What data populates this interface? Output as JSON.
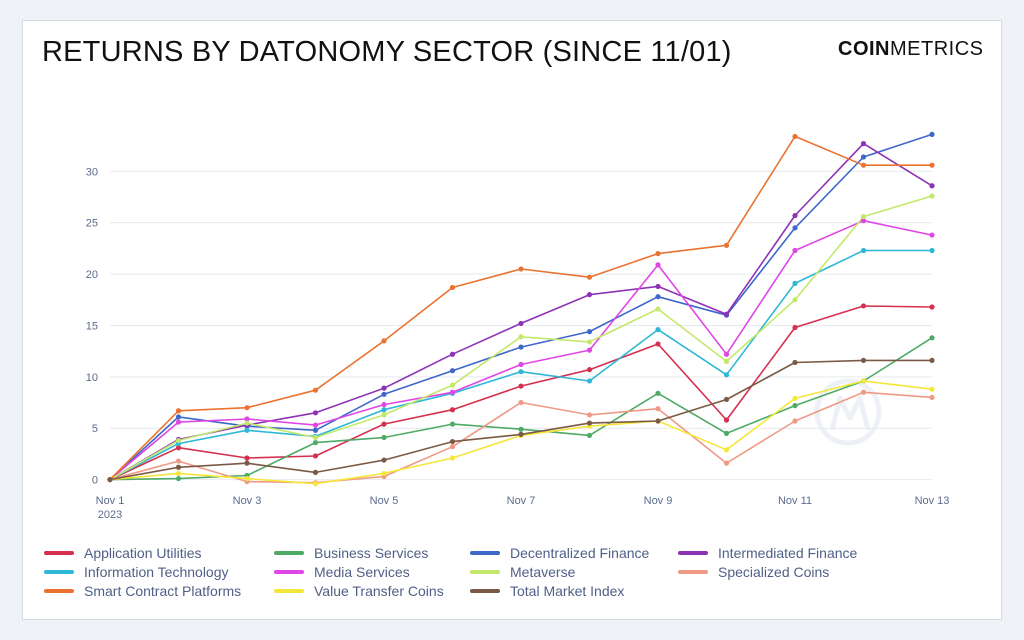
{
  "title": "RETURNS BY DATONOMY SECTOR (SINCE 11/01)",
  "logo": {
    "bold": "COIN",
    "light": "METRICS"
  },
  "chart_data": {
    "type": "line",
    "title": "RETURNS BY DATONOMY SECTOR (SINCE 11/01)",
    "xlabel": "",
    "ylabel": "",
    "x": [
      1,
      2,
      3,
      4,
      5,
      6,
      7,
      8,
      9,
      10,
      11,
      12,
      13
    ],
    "x_tick_labels": [
      {
        "x": 1,
        "label": "Nov 1",
        "sub": "2023"
      },
      {
        "x": 3,
        "label": "Nov 3",
        "sub": ""
      },
      {
        "x": 5,
        "label": "Nov 5",
        "sub": ""
      },
      {
        "x": 7,
        "label": "Nov 7",
        "sub": ""
      },
      {
        "x": 9,
        "label": "Nov 9",
        "sub": ""
      },
      {
        "x": 11,
        "label": "Nov 11",
        "sub": ""
      },
      {
        "x": 13,
        "label": "Nov 13",
        "sub": ""
      }
    ],
    "y_ticks": [
      0,
      5,
      10,
      15,
      20,
      25,
      30
    ],
    "xlim": [
      1,
      13
    ],
    "ylim": [
      -1.5,
      35
    ],
    "grid": "horizontal",
    "legend_position": "bottom",
    "series": [
      {
        "name": "Application Utilities",
        "color": "#d6304f",
        "values": [
          0,
          3.1,
          2.1,
          2.3,
          5.4,
          6.8,
          9.1,
          10.7,
          13.2,
          5.8,
          14.8,
          16.9,
          16.8
        ]
      },
      {
        "name": "Business Services",
        "color": "#4faa66",
        "values": [
          0,
          0.1,
          0.4,
          3.6,
          4.1,
          5.4,
          4.9,
          4.3,
          8.4,
          4.5,
          7.2,
          9.6,
          13.8
        ]
      },
      {
        "name": "Decentralized Finance",
        "color": "#3f67c9",
        "values": [
          0,
          6.1,
          5.2,
          4.8,
          8.3,
          10.6,
          12.9,
          14.4,
          17.8,
          16.0,
          24.5,
          31.4,
          33.6
        ]
      },
      {
        "name": "Intermediated Finance",
        "color": "#8e32b5",
        "values": [
          0,
          3.9,
          5.3,
          6.5,
          8.9,
          12.2,
          15.2,
          18.0,
          18.8,
          16.1,
          25.7,
          32.7,
          28.6
        ]
      },
      {
        "name": "Information Technology",
        "color": "#2fb8d6",
        "values": [
          0,
          3.5,
          4.8,
          4.2,
          6.8,
          8.4,
          10.5,
          9.6,
          14.6,
          10.2,
          19.1,
          22.3,
          22.3
        ]
      },
      {
        "name": "Media Services",
        "color": "#e045e6",
        "values": [
          0,
          5.6,
          5.9,
          5.3,
          7.3,
          8.5,
          11.2,
          12.6,
          20.9,
          12.2,
          22.3,
          25.2,
          23.8
        ]
      },
      {
        "name": "Metaverse",
        "color": "#c4e86b",
        "values": [
          0,
          3.8,
          5.5,
          4.1,
          6.3,
          9.2,
          13.9,
          13.4,
          16.6,
          11.5,
          17.5,
          25.6,
          27.6
        ]
      },
      {
        "name": "Specialized Coins",
        "color": "#ef9a86",
        "values": [
          0,
          1.8,
          -0.2,
          -0.3,
          0.3,
          3.2,
          7.5,
          6.3,
          6.9,
          1.6,
          5.7,
          8.5,
          8.0
        ]
      },
      {
        "name": "Smart Contract Platforms",
        "color": "#ea7331",
        "values": [
          0,
          6.7,
          7.0,
          8.7,
          13.5,
          18.7,
          20.5,
          19.7,
          22.0,
          22.8,
          33.4,
          30.6,
          30.6
        ]
      },
      {
        "name": "Value Transfer Coins",
        "color": "#f5e63a",
        "values": [
          0,
          0.6,
          0.1,
          -0.4,
          0.6,
          2.1,
          4.3,
          5.2,
          5.7,
          2.9,
          7.9,
          9.6,
          8.8
        ]
      },
      {
        "name": "Total Market Index",
        "color": "#7a5a45",
        "values": [
          0,
          1.2,
          1.6,
          0.7,
          1.9,
          3.7,
          4.4,
          5.5,
          5.7,
          7.8,
          11.4,
          11.6,
          11.6
        ]
      }
    ]
  }
}
